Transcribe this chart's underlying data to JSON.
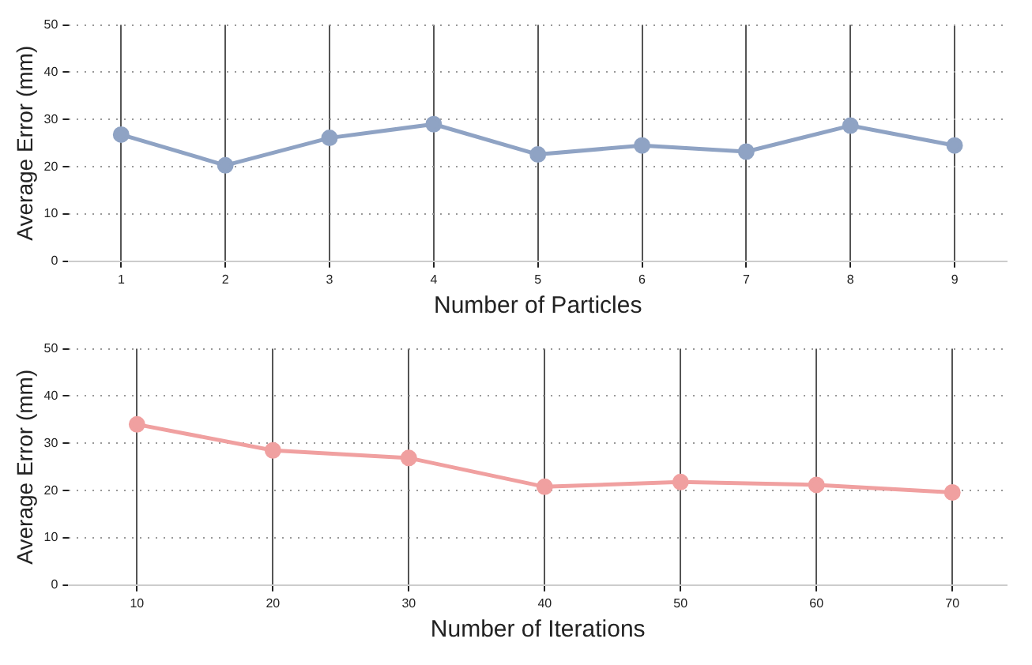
{
  "chart_data": [
    {
      "type": "line",
      "xlabel": "Number of Particles",
      "ylabel": "Average Error (mm)",
      "x": [
        1,
        2,
        3,
        4,
        5,
        6,
        7,
        8,
        9
      ],
      "series": [
        {
          "color": "#8fa3c4",
          "values": [
            26.8,
            20.3,
            26.1,
            29,
            22.6,
            24.5,
            23.2,
            28.7,
            24.5
          ]
        }
      ],
      "xlim": [
        0.5,
        9.5
      ],
      "xticks": [
        1,
        2,
        3,
        4,
        5,
        6,
        7,
        8,
        9
      ],
      "ylim": [
        0,
        50
      ],
      "yticks": [
        0,
        10,
        20,
        30,
        40,
        50
      ],
      "grid": true,
      "marker": "circle",
      "line_style": "solid"
    },
    {
      "type": "line",
      "xlabel": "Number of Iterations",
      "ylabel": "Average Error (mm)",
      "x": [
        10,
        20,
        30,
        40,
        50,
        60,
        70
      ],
      "series": [
        {
          "color": "#f0a0a0",
          "values": [
            34,
            28.5,
            26.9,
            20.8,
            21.8,
            21.2,
            19.6
          ]
        }
      ],
      "xlim": [
        5,
        74
      ],
      "xticks": [
        10,
        20,
        30,
        40,
        50,
        60,
        70
      ],
      "ylim": [
        0,
        50
      ],
      "yticks": [
        0,
        10,
        20,
        30,
        40,
        50
      ],
      "grid": true,
      "marker": "circle",
      "line_style": "solid"
    }
  ]
}
